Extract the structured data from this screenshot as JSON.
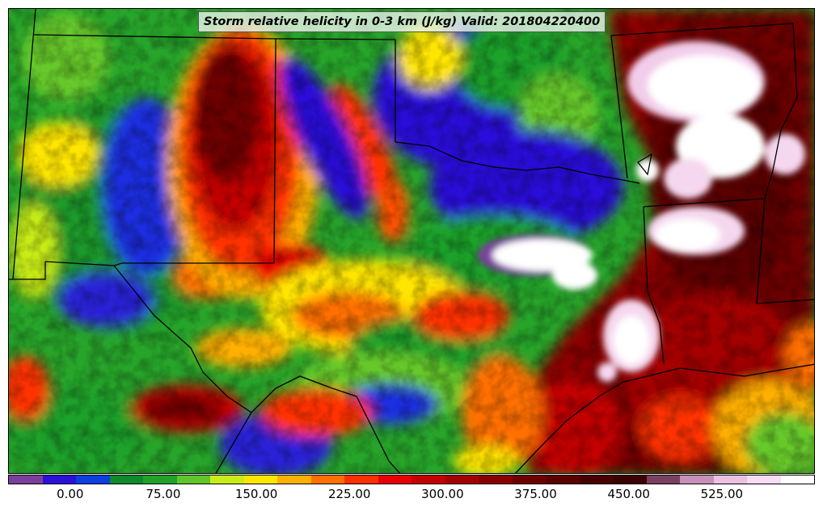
{
  "map": {
    "title": "Storm relative helicity in 0-3 km (J/kg) Valid: 201804220400",
    "variable": "Storm relative helicity in 0-3 km",
    "units": "J/kg",
    "valid_time": "201804220400",
    "region": "Southern Plains / Texas",
    "colorbar": {
      "min": -50,
      "max": 600,
      "step": 25,
      "tick_labels": [
        "0.00",
        "75.00",
        "150.00",
        "225.00",
        "300.00",
        "375.00",
        "450.00",
        "525.00"
      ],
      "tick_values": [
        0,
        75,
        150,
        225,
        300,
        375,
        450,
        525
      ],
      "colors": [
        "#7a3f9d",
        "#2a10d8",
        "#0a3fe0",
        "#0f8a2a",
        "#1fa12a",
        "#5fc52a",
        "#c8ec18",
        "#ffe600",
        "#ffb000",
        "#ff7000",
        "#ff3000",
        "#e80000",
        "#c40000",
        "#a50000",
        "#8a0000",
        "#6e0000",
        "#5a0000",
        "#4a0000",
        "#3d0000",
        "#7a4060",
        "#c890b8",
        "#ecc0e0",
        "#f8dcf4",
        "#ffffff"
      ]
    }
  }
}
